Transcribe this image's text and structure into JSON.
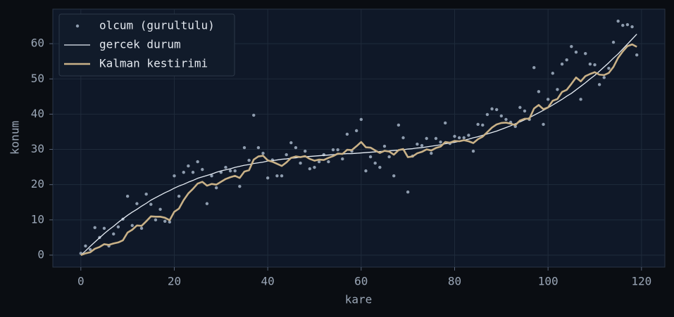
{
  "chart_data": {
    "type": "line",
    "xlabel": "kare",
    "ylabel": "konum",
    "xlim": [
      -6,
      125
    ],
    "ylim": [
      -3.4,
      69.8
    ],
    "xticks": [
      0,
      20,
      40,
      60,
      80,
      100,
      120
    ],
    "yticks": [
      0,
      10,
      20,
      30,
      40,
      50,
      60
    ],
    "grid": true,
    "legend": "upper left",
    "x": [
      0,
      1,
      2,
      3,
      4,
      5,
      6,
      7,
      8,
      9,
      10,
      11,
      12,
      13,
      14,
      15,
      16,
      17,
      18,
      19,
      20,
      21,
      22,
      23,
      24,
      25,
      26,
      27,
      28,
      29,
      30,
      31,
      32,
      33,
      34,
      35,
      36,
      37,
      38,
      39,
      40,
      41,
      42,
      43,
      44,
      45,
      46,
      47,
      48,
      49,
      50,
      51,
      52,
      53,
      54,
      55,
      56,
      57,
      58,
      59,
      60,
      61,
      62,
      63,
      64,
      65,
      66,
      67,
      68,
      69,
      70,
      71,
      72,
      73,
      74,
      75,
      76,
      77,
      78,
      79,
      80,
      81,
      82,
      83,
      84,
      85,
      86,
      87,
      88,
      89,
      90,
      91,
      92,
      93,
      94,
      95,
      96,
      97,
      98,
      99,
      100,
      101,
      102,
      103,
      104,
      105,
      106,
      107,
      108,
      109,
      110,
      111,
      112,
      113,
      114,
      115,
      116,
      117,
      118,
      119
    ],
    "series": [
      {
        "name": "olcum (gurultulu)",
        "type": "scatter",
        "color": "#8e9cae",
        "values": [
          0.5,
          2.6,
          1.6,
          7.8,
          5.0,
          7.6,
          2.6,
          6.0,
          8.0,
          10.2,
          16.7,
          8.4,
          14.6,
          7.6,
          17.3,
          14.4,
          10.0,
          13.0,
          9.6,
          9.4,
          22.5,
          16.7,
          23.5,
          25.3,
          23.5,
          26.5,
          24.3,
          14.6,
          22.5,
          19.1,
          23.5,
          24.9,
          23.9,
          23.9,
          19.5,
          30.5,
          26.9,
          39.7,
          30.5,
          28.9,
          21.9,
          27.0,
          22.5,
          22.5,
          28.5,
          31.9,
          30.5,
          26.1,
          29.5,
          24.5,
          24.9,
          26.5,
          28.5,
          26.5,
          29.9,
          29.9,
          27.3,
          34.3,
          29.5,
          35.3,
          38.5,
          23.9,
          27.9,
          26.1,
          24.9,
          30.9,
          27.9,
          22.5,
          36.9,
          33.3,
          17.9,
          28.1,
          31.5,
          31.1,
          33.1,
          28.9,
          33.1,
          32.1,
          37.5,
          31.7,
          33.7,
          33.3,
          33.3,
          34.0,
          29.5,
          37.1,
          36.9,
          39.9,
          41.5,
          41.3,
          39.5,
          38.5,
          37.7,
          36.5,
          41.9,
          40.9,
          38.5,
          53.2,
          46.4,
          37.1,
          44.2,
          51.6,
          47.0,
          54.2,
          55.4,
          59.2,
          57.6,
          44.2,
          57.2,
          54.2,
          54.0,
          48.4,
          50.4,
          53.0,
          60.4,
          66.4,
          65.2,
          65.4,
          64.8,
          56.8
        ]
      },
      {
        "name": "gercek durum",
        "type": "line",
        "color": "#e6edf5",
        "linewidth": 1.3,
        "values": [
          0,
          1.2,
          2.5,
          3.7,
          4.9,
          6.1,
          7.2,
          8.2,
          9.3,
          10.3,
          11.3,
          12.2,
          13.0,
          13.9,
          14.7,
          15.6,
          16.3,
          17.0,
          17.7,
          18.3,
          19.0,
          19.6,
          20.1,
          20.7,
          21.2,
          21.8,
          22.2,
          22.6,
          23.0,
          23.5,
          23.9,
          24.2,
          24.5,
          24.9,
          25.2,
          25.5,
          25.7,
          26.0,
          26.2,
          26.4,
          26.7,
          26.8,
          27.0,
          27.2,
          27.3,
          27.5,
          27.6,
          27.8,
          27.9,
          28.0,
          28.1,
          28.2,
          28.3,
          28.4,
          28.5,
          28.6,
          28.7,
          28.8,
          28.8,
          28.9,
          29.0,
          29.1,
          29.2,
          29.3,
          29.4,
          29.5,
          29.6,
          29.7,
          29.8,
          29.9,
          30.1,
          30.2,
          30.4,
          30.5,
          30.7,
          30.9,
          31.1,
          31.3,
          31.6,
          31.8,
          32.0,
          32.3,
          32.6,
          32.9,
          33.3,
          33.6,
          34.0,
          34.4,
          34.8,
          35.2,
          35.7,
          36.2,
          36.7,
          37.3,
          37.8,
          38.4,
          39.0,
          39.7,
          40.4,
          41.1,
          41.8,
          42.6,
          43.4,
          44.2,
          45.1,
          45.9,
          46.9,
          47.9,
          48.9,
          50.0,
          51.0,
          52.2,
          53.4,
          54.6,
          55.9,
          57.1,
          58.5,
          59.9,
          61.3,
          62.7
        ]
      },
      {
        "name": "Kalman kestirimi",
        "type": "line",
        "color": "#c9b187",
        "linewidth": 2.6,
        "values": [
          0,
          0.5,
          0.8,
          1.8,
          2.3,
          3.1,
          2.9,
          3.3,
          3.6,
          4.2,
          6.4,
          7.2,
          8.4,
          8.3,
          9.6,
          11.0,
          10.9,
          10.9,
          10.6,
          9.9,
          12.3,
          13.2,
          15.6,
          17.5,
          18.8,
          20.3,
          20.8,
          19.7,
          20.2,
          20.0,
          20.8,
          21.6,
          22.1,
          22.5,
          21.9,
          23.7,
          24.1,
          27.1,
          28.0,
          28.2,
          26.9,
          26.5,
          25.9,
          25.3,
          26.3,
          27.6,
          28.0,
          27.8,
          28.1,
          27.3,
          26.8,
          27.1,
          27.0,
          27.6,
          28.1,
          28.8,
          28.7,
          29.9,
          29.8,
          30.9,
          32.1,
          30.6,
          30.5,
          29.7,
          29.0,
          29.6,
          29.4,
          28.5,
          29.8,
          30.1,
          27.8,
          28.0,
          28.9,
          29.3,
          30.0,
          29.7,
          30.4,
          30.8,
          32.1,
          31.9,
          32.4,
          32.3,
          32.6,
          32.3,
          31.8,
          32.9,
          33.6,
          34.9,
          36.2,
          37.1,
          37.5,
          37.6,
          37.3,
          36.9,
          38.2,
          38.7,
          38.7,
          41.6,
          42.6,
          41.4,
          41.9,
          43.8,
          44.3,
          46.3,
          46.9,
          48.6,
          50.4,
          49.3,
          50.8,
          51.4,
          51.9,
          51.2,
          51.1,
          51.7,
          53.4,
          56.0,
          57.8,
          59.3,
          59.8,
          59.1
        ]
      }
    ]
  }
}
